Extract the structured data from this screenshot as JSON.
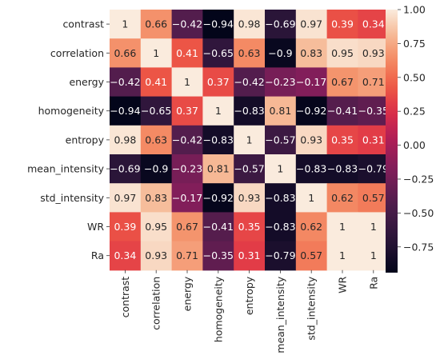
{
  "chart_data": {
    "type": "heatmap",
    "rows": [
      "contrast",
      "correlation",
      "energy",
      "homogeneity",
      "entropy",
      "mean_intensity",
      "std_intensity",
      "WR",
      "Ra"
    ],
    "columns": [
      "contrast",
      "correlation",
      "energy",
      "homogeneity",
      "entropy",
      "mean_intensity",
      "std_intensity",
      "WR",
      "Ra"
    ],
    "values": [
      [
        1,
        0.66,
        -0.42,
        -0.94,
        0.98,
        -0.69,
        0.97,
        0.39,
        0.34
      ],
      [
        0.66,
        1,
        0.41,
        -0.65,
        0.63,
        -0.9,
        0.83,
        0.95,
        0.93
      ],
      [
        -0.42,
        0.41,
        1,
        0.37,
        -0.42,
        -0.23,
        -0.17,
        0.67,
        0.71
      ],
      [
        -0.94,
        -0.65,
        0.37,
        1,
        -0.83,
        0.81,
        -0.92,
        -0.41,
        -0.35
      ],
      [
        0.98,
        0.63,
        -0.42,
        -0.83,
        1,
        -0.57,
        0.93,
        0.35,
        0.31
      ],
      [
        -0.69,
        -0.9,
        -0.23,
        0.81,
        -0.57,
        1,
        -0.83,
        -0.83,
        -0.79
      ],
      [
        0.97,
        0.83,
        -0.17,
        -0.92,
        0.93,
        -0.83,
        1,
        0.62,
        0.57
      ],
      [
        0.39,
        0.95,
        0.67,
        -0.41,
        0.35,
        -0.83,
        0.62,
        1,
        1
      ],
      [
        0.34,
        0.93,
        0.71,
        -0.35,
        0.31,
        -0.79,
        0.57,
        1,
        1
      ]
    ],
    "colorbar": {
      "range": [
        -0.94,
        1.0
      ],
      "ticks": [
        1.0,
        0.75,
        0.5,
        0.25,
        0.0,
        -0.25,
        -0.5,
        -0.75
      ],
      "tick_labels": [
        "1.00",
        "0.75",
        "0.50",
        "0.25",
        "0.00",
        "−0.25",
        "−0.50",
        "−0.75"
      ],
      "colormap": "rocket"
    },
    "title": "",
    "xlabel": "",
    "ylabel": ""
  }
}
